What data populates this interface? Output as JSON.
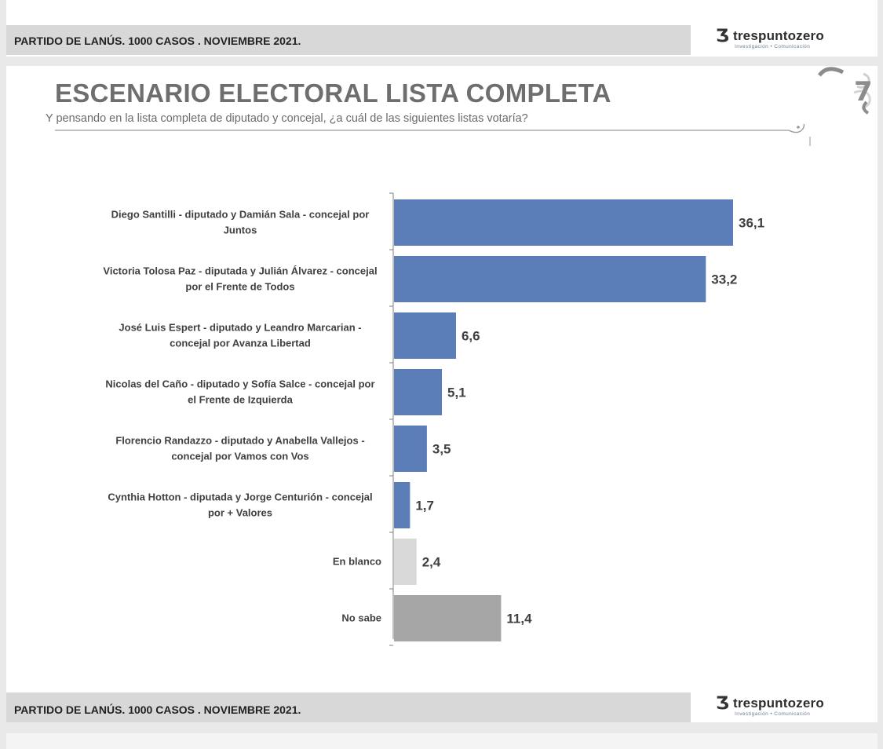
{
  "header": {
    "footer_text": "PARTIDO DE LANÚS. 1000 CASOS . NOVIEMBRE 2021.",
    "logo_name": "trespuntozero",
    "logo_tagline": "Investigación • Comunicación"
  },
  "slide": {
    "title": "ESCENARIO ELECTORAL LISTA COMPLETA",
    "subtitle": "Y pensando en la lista completa de diputado y concejal, ¿a cuál de las siguientes listas votaría?"
  },
  "footer": {
    "footer_text": "PARTIDO DE LANÚS. 1000 CASOS . NOVIEMBRE 2021.",
    "logo_name": "trespuntozero",
    "logo_tagline": "Investigación • Comunicación"
  },
  "colors": {
    "bar_main": "#5b7db8",
    "bar_blank": "#d9d9d9",
    "bar_no_sabe": "#a6a6a6",
    "text": "#404040"
  },
  "chart_data": {
    "type": "bar",
    "orientation": "horizontal",
    "categories": [
      [
        "Diego Santilli - diputado y Damián Sala - concejal por",
        "Juntos"
      ],
      [
        "Victoria Tolosa Paz - diputada y Julián Álvarez - concejal",
        "por el Frente de Todos"
      ],
      [
        "José Luis Espert - diputado y Leandro Marcarian -",
        "concejal por Avanza Libertad"
      ],
      [
        "Nicolas del Caño - diputado y Sofía Salce - concejal por",
        "el Frente de Izquierda"
      ],
      [
        "Florencio Randazzo - diputado y Anabella Vallejos -",
        "concejal por Vamos con Vos"
      ],
      [
        "Cynthia Hotton - diputada y Jorge Centurión - concejal",
        "por + Valores"
      ],
      [
        "En blanco"
      ],
      [
        "No sabe"
      ]
    ],
    "values": [
      36.1,
      33.2,
      6.6,
      5.1,
      3.5,
      1.7,
      2.4,
      11.4
    ],
    "value_labels": [
      "36,1",
      "33,2",
      "6,6",
      "5,1",
      "3,5",
      "1,7",
      "2,4",
      "11,4"
    ],
    "bar_colors": [
      "#5b7db8",
      "#5b7db8",
      "#5b7db8",
      "#5b7db8",
      "#5b7db8",
      "#5b7db8",
      "#d9d9d9",
      "#a6a6a6"
    ],
    "xlim": [
      0,
      40
    ],
    "grid": false,
    "legend": "none"
  }
}
